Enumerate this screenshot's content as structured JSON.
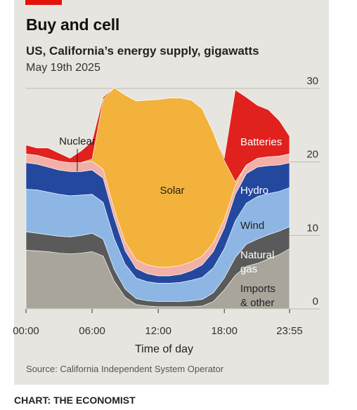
{
  "header": {
    "title": "Buy and cell",
    "subtitle": "US, California’s energy supply, gigawatts",
    "date": "May 19th 2025"
  },
  "footer": {
    "source": "Source: California Independent System Operator",
    "credit": "CHART: THE ECONOMIST"
  },
  "chart_data": {
    "type": "area",
    "stacked": true,
    "xlabel": "Time of day",
    "x": [
      "00:00",
      "01:00",
      "02:00",
      "03:00",
      "04:00",
      "05:00",
      "06:00",
      "07:00",
      "08:00",
      "09:00",
      "10:00",
      "11:00",
      "12:00",
      "13:00",
      "14:00",
      "15:00",
      "16:00",
      "17:00",
      "18:00",
      "19:00",
      "20:00",
      "21:00",
      "22:00",
      "23:00",
      "23:55"
    ],
    "xticks": [
      "00:00",
      "06:00",
      "12:00",
      "18:00",
      "23:55"
    ],
    "ylim": [
      0,
      30
    ],
    "yticks": [
      0,
      10,
      20,
      30
    ],
    "grid": true,
    "legend": "inline labels",
    "series": [
      {
        "name": "Imports & other",
        "color": "#a9a59b",
        "values": [
          8.0,
          7.9,
          7.8,
          7.6,
          7.5,
          7.6,
          7.8,
          7.2,
          3.8,
          1.6,
          0.6,
          0.4,
          0.3,
          0.3,
          0.3,
          0.3,
          0.4,
          1.0,
          2.6,
          4.6,
          5.8,
          6.2,
          6.8,
          7.4,
          8.2
        ]
      },
      {
        "name": "Natural gas",
        "color": "#5a5a5a",
        "values": [
          2.5,
          2.4,
          2.3,
          2.3,
          2.3,
          2.4,
          2.5,
          2.3,
          1.6,
          1.1,
          0.8,
          0.7,
          0.7,
          0.7,
          0.7,
          0.8,
          0.9,
          1.2,
          1.6,
          2.4,
          3.0,
          3.3,
          3.3,
          3.2,
          3.0
        ]
      },
      {
        "name": "Wind",
        "color": "#8eb6e5",
        "values": [
          5.8,
          5.9,
          5.8,
          5.7,
          5.6,
          5.5,
          5.3,
          5.0,
          4.2,
          3.4,
          2.8,
          2.6,
          2.5,
          2.5,
          2.6,
          2.8,
          3.0,
          3.4,
          4.0,
          5.0,
          5.6,
          5.8,
          5.6,
          5.4,
          5.3
        ]
      },
      {
        "name": "Hydro",
        "color": "#23489e",
        "values": [
          3.6,
          3.5,
          3.4,
          3.3,
          3.3,
          3.2,
          3.3,
          3.3,
          2.8,
          1.8,
          1.3,
          1.1,
          1.0,
          1.0,
          1.1,
          1.3,
          1.7,
          2.2,
          2.8,
          3.6,
          4.0,
          4.0,
          3.8,
          3.6,
          3.4
        ]
      },
      {
        "name": "Nuclear",
        "color": "#f2b0a8",
        "values": [
          1.2,
          1.2,
          1.2,
          1.2,
          1.2,
          1.2,
          1.2,
          1.2,
          1.2,
          1.2,
          1.2,
          1.2,
          1.2,
          1.2,
          1.2,
          1.2,
          1.2,
          1.2,
          1.2,
          1.2,
          1.2,
          1.2,
          1.2,
          1.2,
          1.2
        ]
      },
      {
        "name": "Solar",
        "color": "#f3b23b",
        "values": [
          0,
          0,
          0,
          0,
          0,
          0,
          0.3,
          9.5,
          16.5,
          20.0,
          21.6,
          22.4,
          22.8,
          23.0,
          22.8,
          22.0,
          20.0,
          15.0,
          8.0,
          0.5,
          0,
          0,
          0,
          0,
          0
        ]
      },
      {
        "name": "Batteries",
        "color": "#e0211d",
        "values": [
          1.2,
          1.0,
          1.4,
          1.1,
          0.6,
          1.6,
          2.4,
          0.3,
          0,
          0,
          0,
          0,
          0,
          0,
          0,
          0,
          0,
          0,
          0.3,
          12.5,
          9.2,
          7.2,
          6.4,
          4.8,
          2.4
        ]
      }
    ],
    "annotations": [
      "Nuclear",
      "Solar",
      "Batteries",
      "Hydro",
      "Wind",
      "Natural gas",
      "Imports & other"
    ]
  }
}
